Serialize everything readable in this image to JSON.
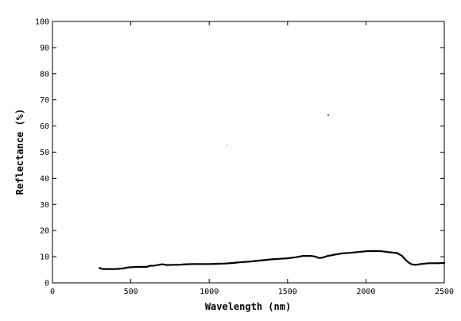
{
  "chart_data": {
    "type": "line",
    "title": "",
    "xlabel": "Wavelength (nm)",
    "ylabel": "Reflectance (%)",
    "xlim": [
      0,
      2500
    ],
    "ylim": [
      0,
      100
    ],
    "x_ticks": [
      0,
      500,
      1000,
      1500,
      2000,
      2500
    ],
    "y_ticks": [
      0,
      10,
      20,
      30,
      40,
      50,
      60,
      70,
      80,
      90,
      100
    ],
    "grid": false,
    "legend": "none",
    "series": [
      {
        "x": [
          300,
          320,
          350,
          400,
          450,
          480,
          500,
          550,
          600,
          620,
          650,
          680,
          700,
          730,
          760,
          800,
          850,
          900,
          950,
          1000,
          1050,
          1100,
          1150,
          1200,
          1250,
          1300,
          1350,
          1400,
          1450,
          1500,
          1550,
          1600,
          1650,
          1680,
          1700,
          1720,
          1750,
          1800,
          1850,
          1900,
          1950,
          2000,
          2050,
          2100,
          2150,
          2200,
          2230,
          2250,
          2270,
          2290,
          2310,
          2330,
          2350,
          2400,
          2450,
          2500
        ],
        "values": [
          5.7,
          5.3,
          5.3,
          5.3,
          5.5,
          5.9,
          6.0,
          6.1,
          6.1,
          6.5,
          6.6,
          6.9,
          7.1,
          6.8,
          6.9,
          6.9,
          7.1,
          7.2,
          7.2,
          7.2,
          7.3,
          7.4,
          7.6,
          7.9,
          8.1,
          8.4,
          8.7,
          9.0,
          9.2,
          9.4,
          9.8,
          10.3,
          10.3,
          10.0,
          9.5,
          9.6,
          10.2,
          10.8,
          11.3,
          11.5,
          11.8,
          12.1,
          12.2,
          12.1,
          11.7,
          11.4,
          10.3,
          9.0,
          7.9,
          7.1,
          6.9,
          7.0,
          7.2,
          7.5,
          7.5,
          7.6
        ]
      }
    ]
  }
}
